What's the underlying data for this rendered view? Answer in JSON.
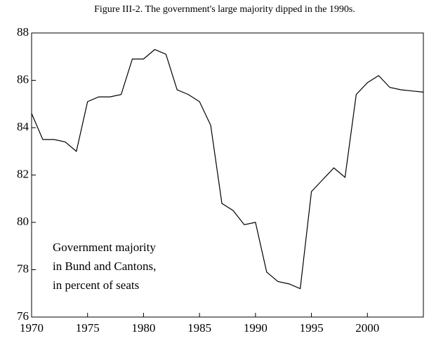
{
  "chart_data": {
    "type": "line",
    "title": "Figure III-2. The government's large majority dipped in the 1990s.",
    "annotation": [
      "Government majority",
      "in Bund and Cantons,",
      "in percent of seats"
    ],
    "x": [
      1970,
      1971,
      1972,
      1973,
      1974,
      1975,
      1976,
      1977,
      1978,
      1979,
      1980,
      1981,
      1982,
      1983,
      1984,
      1985,
      1986,
      1987,
      1988,
      1989,
      1990,
      1991,
      1992,
      1993,
      1994,
      1995,
      1996,
      1997,
      1998,
      1999,
      2000,
      2001,
      2002,
      2003,
      2004,
      2005
    ],
    "series": [
      {
        "color": "#000000",
        "values": [
          84.6,
          83.5,
          83.5,
          83.4,
          83.0,
          85.1,
          85.3,
          85.3,
          85.4,
          86.9,
          86.9,
          87.3,
          87.1,
          85.6,
          85.4,
          85.1,
          84.1,
          80.8,
          80.5,
          79.9,
          80.0,
          77.9,
          77.5,
          77.4,
          77.2,
          81.3,
          81.8,
          82.3,
          81.9,
          85.4,
          85.9,
          86.2,
          85.7,
          85.6,
          85.55,
          85.5
        ]
      }
    ],
    "xlim": [
      1970,
      2005
    ],
    "xticks": [
      1970,
      1975,
      1980,
      1985,
      1990,
      1995,
      2000
    ],
    "ylim": [
      76,
      88
    ],
    "yticks": [
      76,
      78,
      80,
      82,
      84,
      86,
      88
    ]
  }
}
